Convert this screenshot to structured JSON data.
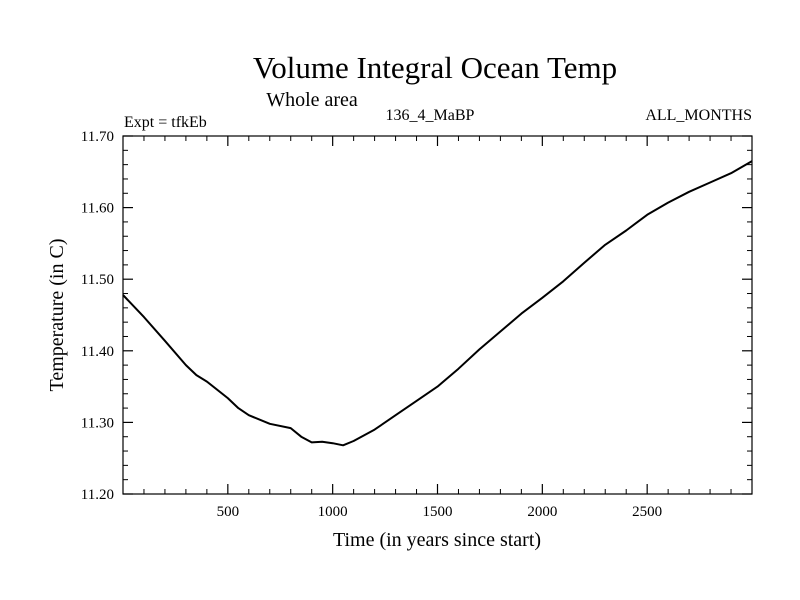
{
  "chart_data": {
    "type": "line",
    "title": "Volume Integral Ocean Temp",
    "subtitle": "Whole area",
    "header_left": "Expt = tfkEb",
    "header_center": "136_4_MaBP",
    "header_right": "ALL_MONTHS",
    "xlabel": "Time (in years since start)",
    "ylabel": "Temperature (in C)",
    "xlim": [
      0,
      3000
    ],
    "ylim": [
      11.2,
      11.7
    ],
    "x_ticks": [
      500,
      1000,
      1500,
      2000,
      2500
    ],
    "x_tick_labels": [
      "500",
      "1000",
      "1500",
      "2000",
      "2500"
    ],
    "y_ticks": [
      11.2,
      11.3,
      11.4,
      11.5,
      11.6,
      11.7
    ],
    "y_tick_labels": [
      "11.20",
      "11.30",
      "11.40",
      "11.50",
      "11.60",
      "11.70"
    ],
    "grid": false,
    "series": [
      {
        "x": [
          0,
          100,
          200,
          300,
          350,
          400,
          500,
          550,
          600,
          700,
          800,
          850,
          900,
          950,
          1000,
          1050,
          1100,
          1200,
          1300,
          1400,
          1500,
          1600,
          1700,
          1800,
          1900,
          2000,
          2100,
          2200,
          2300,
          2400,
          2500,
          2600,
          2700,
          2800,
          2900,
          3000
        ],
        "values": [
          11.478,
          11.447,
          11.414,
          11.38,
          11.366,
          11.357,
          11.334,
          11.32,
          11.31,
          11.298,
          11.292,
          11.28,
          11.272,
          11.273,
          11.271,
          11.268,
          11.274,
          11.29,
          11.31,
          11.33,
          11.35,
          11.375,
          11.402,
          11.427,
          11.452,
          11.474,
          11.497,
          11.523,
          11.548,
          11.568,
          11.59,
          11.607,
          11.622,
          11.635,
          11.648,
          11.665
        ]
      }
    ]
  }
}
